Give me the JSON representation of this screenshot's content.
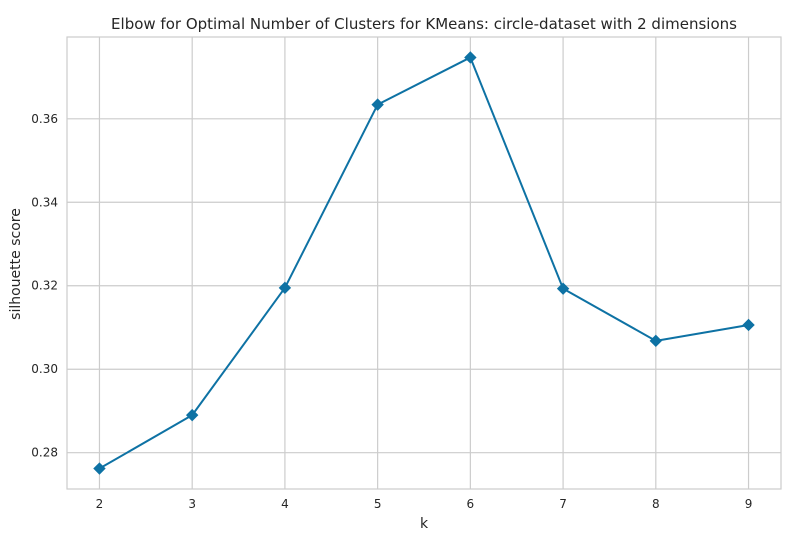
{
  "chart_data": {
    "type": "line",
    "title": "Elbow for Optimal Number of Clusters for KMeans: circle-dataset with 2 dimensions",
    "xlabel": "k",
    "ylabel": "silhouette score",
    "x": [
      2,
      3,
      4,
      5,
      6,
      7,
      8,
      9
    ],
    "series": [
      {
        "values": [
          0.2762,
          0.289,
          0.3195,
          0.3634,
          0.3747,
          0.3193,
          0.3068,
          0.3106
        ],
        "color": "#0e72a4",
        "marker": "diamond"
      }
    ],
    "xticks": [
      2,
      3,
      4,
      5,
      6,
      7,
      8,
      9
    ],
    "xtick_labels": [
      "2",
      "3",
      "4",
      "5",
      "6",
      "7",
      "8",
      "9"
    ],
    "yticks": [
      0.28,
      0.3,
      0.32,
      0.34,
      0.36
    ],
    "ytick_labels": [
      "0.28",
      "0.30",
      "0.32",
      "0.34",
      "0.36"
    ],
    "xlim": [
      1.65,
      9.35
    ],
    "ylim": [
      0.2713,
      0.3796
    ],
    "grid": true,
    "legend": "none",
    "grid_color": "#cccccc",
    "background_color": "#ffffff"
  }
}
